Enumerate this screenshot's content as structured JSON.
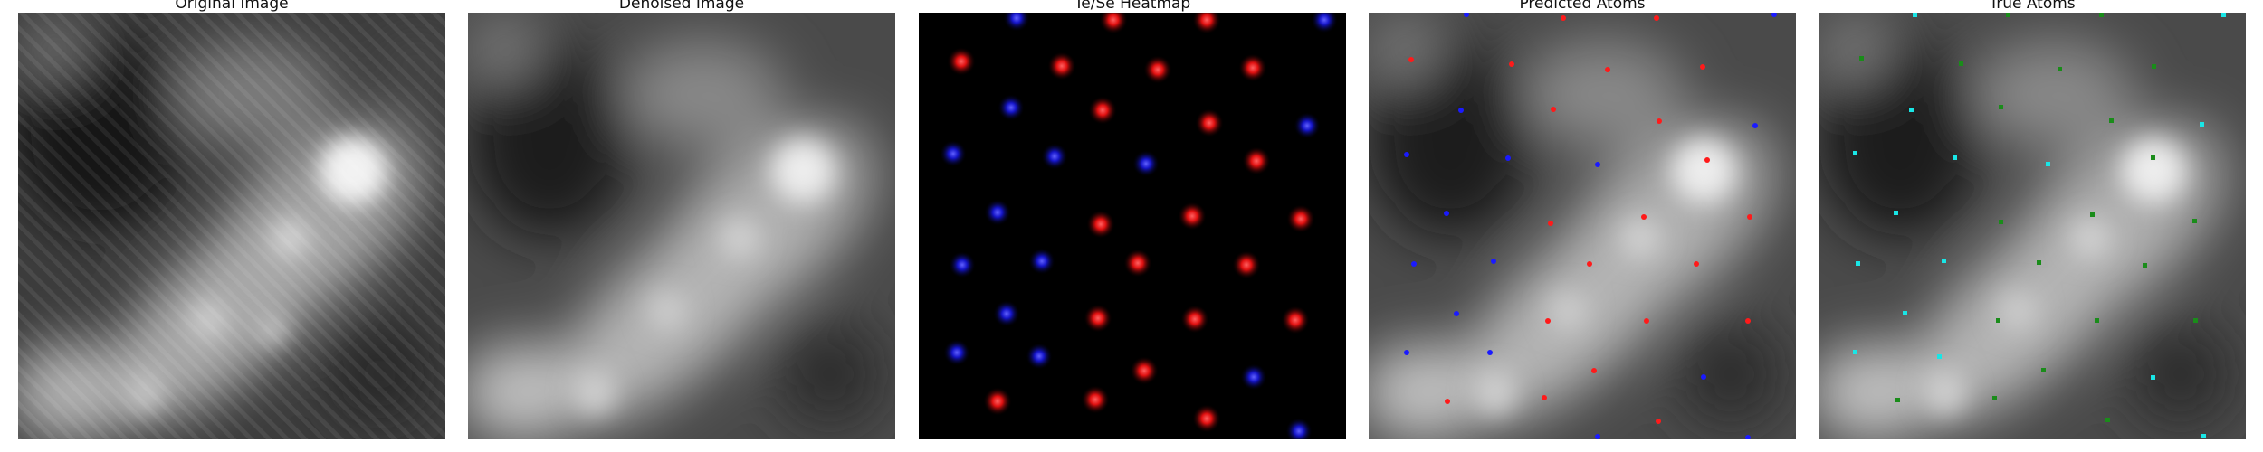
{
  "panels": [
    {
      "id": "original",
      "title": "Original Image"
    },
    {
      "id": "denoised",
      "title": "Denoised Image"
    },
    {
      "id": "heatmap",
      "title": "Te/Se Heatmap"
    },
    {
      "id": "predicted",
      "title": "Predicted Atoms"
    },
    {
      "id": "true",
      "title": "True Atoms"
    }
  ],
  "colors": {
    "te": "#ff1a1a",
    "se": "#1a1aff",
    "true_te": "#1a8c1a",
    "true_se": "#19e6e6",
    "background_dark": "#000000"
  }
}
